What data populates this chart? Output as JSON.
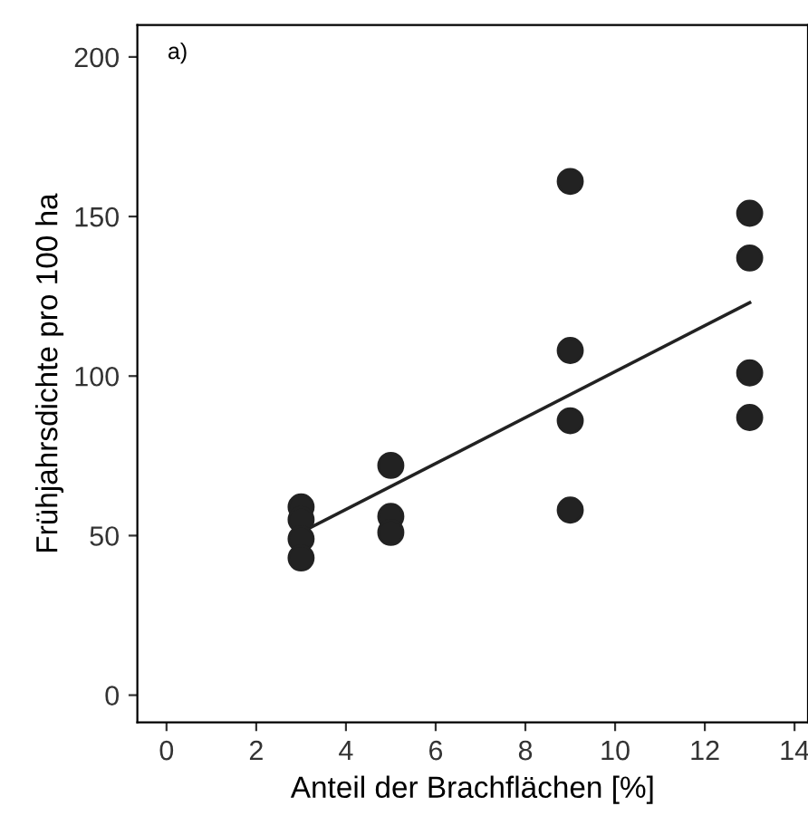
{
  "chart_data": {
    "type": "scatter",
    "xlabel": "Anteil der Brachflächen [%]",
    "ylabel": "Frühjahrsdichte pro 100 ha",
    "annotations": [
      "a)"
    ],
    "series": [
      {
        "color": "#222222",
        "marker": "circle",
        "x": [
          3,
          3,
          3,
          3,
          5,
          5,
          5,
          9,
          9,
          9,
          9,
          13,
          13,
          13,
          13
        ],
        "values": [
          59,
          55,
          49,
          43,
          72,
          56,
          51,
          161,
          108,
          86,
          58,
          151,
          137,
          101,
          87
        ]
      },
      {
        "type": "line",
        "color": "#222222",
        "x": [
          3,
          13
        ],
        "values": [
          51,
          123
        ]
      }
    ],
    "xlim": [
      -0.65,
      14.3
    ],
    "ylim": [
      -8.5,
      210
    ],
    "xticks": [
      0,
      2,
      4,
      6,
      8,
      10,
      12,
      14
    ],
    "yticks": [
      0,
      50,
      100,
      150,
      200
    ],
    "grid": false
  }
}
